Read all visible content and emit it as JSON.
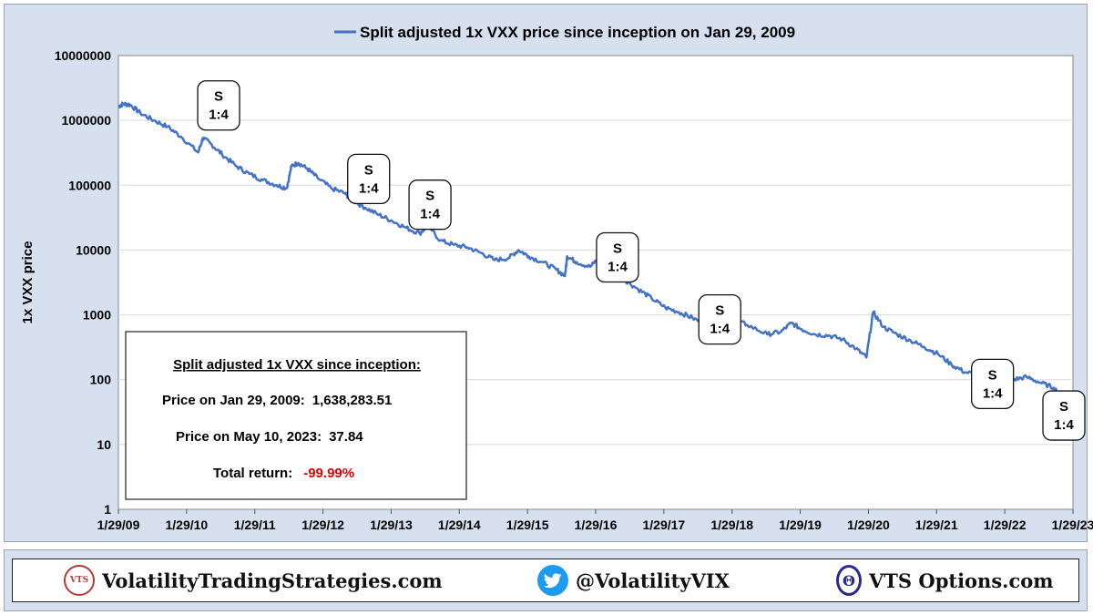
{
  "chart_data": {
    "type": "line",
    "title": "",
    "xlabel": "",
    "ylabel": "1x VXX price",
    "yscale": "log",
    "ylim": [
      1,
      10000000
    ],
    "y_ticks": [
      "1",
      "10",
      "100",
      "1000",
      "10000",
      "100000",
      "1000000",
      "10000000"
    ],
    "x_range_years": [
      2009.08,
      2023.08
    ],
    "x_tick_labels": [
      "1/29/09",
      "1/29/10",
      "1/29/11",
      "1/29/12",
      "1/29/13",
      "1/29/14",
      "1/29/15",
      "1/29/16",
      "1/29/17",
      "1/29/18",
      "1/29/19",
      "1/29/20",
      "1/29/21",
      "1/29/22",
      "1/29/23"
    ],
    "series": [
      {
        "name": "Split adjusted 1x VXX price since inception on Jan 29, 2009",
        "color": "#4472c4",
        "points": [
          [
            2009.08,
            1638283
          ],
          [
            2009.15,
            1800000
          ],
          [
            2009.25,
            1750000
          ],
          [
            2009.4,
            1300000
          ],
          [
            2009.6,
            1000000
          ],
          [
            2009.8,
            800000
          ],
          [
            2010.0,
            560000
          ],
          [
            2010.25,
            320000
          ],
          [
            2010.32,
            540000
          ],
          [
            2010.45,
            420000
          ],
          [
            2010.6,
            300000
          ],
          [
            2010.8,
            200000
          ],
          [
            2011.0,
            150000
          ],
          [
            2011.2,
            120000
          ],
          [
            2011.4,
            100000
          ],
          [
            2011.55,
            90000
          ],
          [
            2011.62,
            200000
          ],
          [
            2011.72,
            220000
          ],
          [
            2011.85,
            180000
          ],
          [
            2012.0,
            130000
          ],
          [
            2012.2,
            90000
          ],
          [
            2012.4,
            75000
          ],
          [
            2012.5,
            60000
          ],
          [
            2012.7,
            45000
          ],
          [
            2012.9,
            35000
          ],
          [
            2013.1,
            28000
          ],
          [
            2013.3,
            22000
          ],
          [
            2013.5,
            18000
          ],
          [
            2013.62,
            24000
          ],
          [
            2013.8,
            14000
          ],
          [
            2014.0,
            12000
          ],
          [
            2014.2,
            11000
          ],
          [
            2014.4,
            9000
          ],
          [
            2014.6,
            7000
          ],
          [
            2014.8,
            7500
          ],
          [
            2014.95,
            10000
          ],
          [
            2015.1,
            8000
          ],
          [
            2015.3,
            6500
          ],
          [
            2015.5,
            5000
          ],
          [
            2015.63,
            4000
          ],
          [
            2015.66,
            8000
          ],
          [
            2015.8,
            6500
          ],
          [
            2016.0,
            5500
          ],
          [
            2016.12,
            7500
          ],
          [
            2016.3,
            5000
          ],
          [
            2016.5,
            3500
          ],
          [
            2016.7,
            2500
          ],
          [
            2016.9,
            1800
          ],
          [
            2017.1,
            1300
          ],
          [
            2017.3,
            1100
          ],
          [
            2017.5,
            900
          ],
          [
            2017.7,
            700
          ],
          [
            2017.9,
            500
          ],
          [
            2018.0,
            420
          ],
          [
            2018.1,
            850
          ],
          [
            2018.3,
            700
          ],
          [
            2018.6,
            500
          ],
          [
            2018.8,
            550
          ],
          [
            2018.95,
            750
          ],
          [
            2019.1,
            600
          ],
          [
            2019.3,
            500
          ],
          [
            2019.5,
            480
          ],
          [
            2019.7,
            420
          ],
          [
            2019.9,
            300
          ],
          [
            2020.05,
            220
          ],
          [
            2020.15,
            1100
          ],
          [
            2020.3,
            650
          ],
          [
            2020.5,
            500
          ],
          [
            2020.7,
            400
          ],
          [
            2020.9,
            320
          ],
          [
            2021.1,
            250
          ],
          [
            2021.3,
            170
          ],
          [
            2021.5,
            130
          ],
          [
            2021.7,
            120
          ],
          [
            2021.9,
            100
          ],
          [
            2022.0,
            85
          ],
          [
            2022.2,
            100
          ],
          [
            2022.4,
            110
          ],
          [
            2022.6,
            90
          ],
          [
            2022.8,
            75
          ],
          [
            2022.95,
            50
          ],
          [
            2023.08,
            45
          ]
        ]
      }
    ],
    "legend": {
      "position": "top-center"
    },
    "split_annotations": [
      {
        "year": 2010.55,
        "price": 1700000,
        "label_top": "S",
        "label_bottom": "1:4"
      },
      {
        "year": 2012.75,
        "price": 125000,
        "label_top": "S",
        "label_bottom": "1:4"
      },
      {
        "year": 2013.65,
        "price": 50000,
        "label_top": "S",
        "label_bottom": "1:4"
      },
      {
        "year": 2016.4,
        "price": 7700,
        "label_top": "S",
        "label_bottom": "1:4"
      },
      {
        "year": 2017.9,
        "price": 850,
        "label_top": "S",
        "label_bottom": "1:4"
      },
      {
        "year": 2021.9,
        "price": 86,
        "label_top": "S",
        "label_bottom": "1:4"
      },
      {
        "year": 2023.2,
        "price": 28,
        "label_top": "S",
        "label_bottom": "1:4"
      }
    ],
    "info_box": {
      "heading": "Split adjusted 1x VXX since inception:",
      "start_label": "Price on Jan 29, 2009:",
      "start_value": "1,638,283.51",
      "end_label": "Price on May 10, 2023:",
      "end_value": "37.84",
      "return_label": "Total return:",
      "return_value": "-99.99%",
      "return_color": "#e00000"
    }
  },
  "footer": {
    "site": {
      "logo_text": "VTS",
      "text": "VolatilityTradingStrategies.com"
    },
    "twitter": {
      "text": "@VolatilityVIX"
    },
    "options": {
      "logo_text": "Θ",
      "text": "VTS Options.com"
    }
  }
}
